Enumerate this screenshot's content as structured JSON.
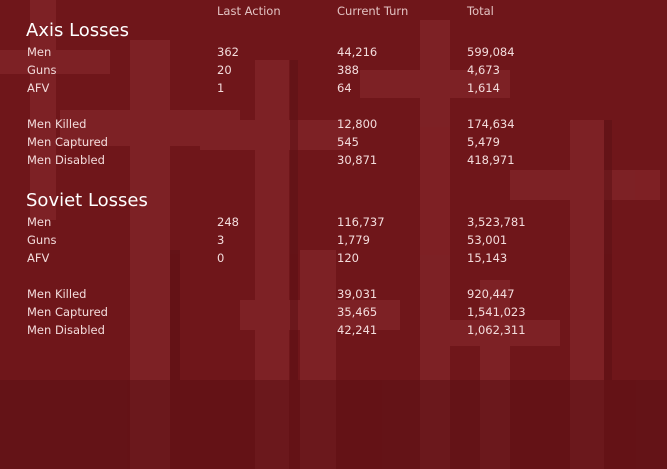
{
  "header": {
    "columns": [
      "Last Action",
      "Current Turn",
      "Total"
    ]
  },
  "sections": [
    {
      "title": "Axis Losses",
      "groups": [
        [
          {
            "label": "Men",
            "last_action": "362",
            "current_turn": "44,216",
            "total": "599,084"
          },
          {
            "label": "Guns",
            "last_action": "20",
            "current_turn": "388",
            "total": "4,673"
          },
          {
            "label": "AFV",
            "last_action": "1",
            "current_turn": "64",
            "total": "1,614"
          }
        ],
        [
          {
            "label": "Men Killed",
            "current_turn": "12,800",
            "total": "174,634"
          },
          {
            "label": "Men Captured",
            "current_turn": "545",
            "total": "5,479"
          },
          {
            "label": "Men Disabled",
            "current_turn": "30,871",
            "total": "418,971"
          }
        ]
      ]
    },
    {
      "title": "Soviet Losses",
      "groups": [
        [
          {
            "label": "Men",
            "last_action": "248",
            "current_turn": "116,737",
            "total": "3,523,781"
          },
          {
            "label": "Guns",
            "last_action": "3",
            "current_turn": "1,779",
            "total": "53,001"
          },
          {
            "label": "AFV",
            "last_action": "0",
            "current_turn": "120",
            "total": "15,143"
          }
        ],
        [
          {
            "label": "Men Killed",
            "current_turn": "39,031",
            "total": "920,447"
          },
          {
            "label": "Men Captured",
            "current_turn": "35,465",
            "total": "1,541,023"
          },
          {
            "label": "Men Disabled",
            "current_turn": "42,241",
            "total": "1,062,311"
          }
        ]
      ]
    }
  ]
}
